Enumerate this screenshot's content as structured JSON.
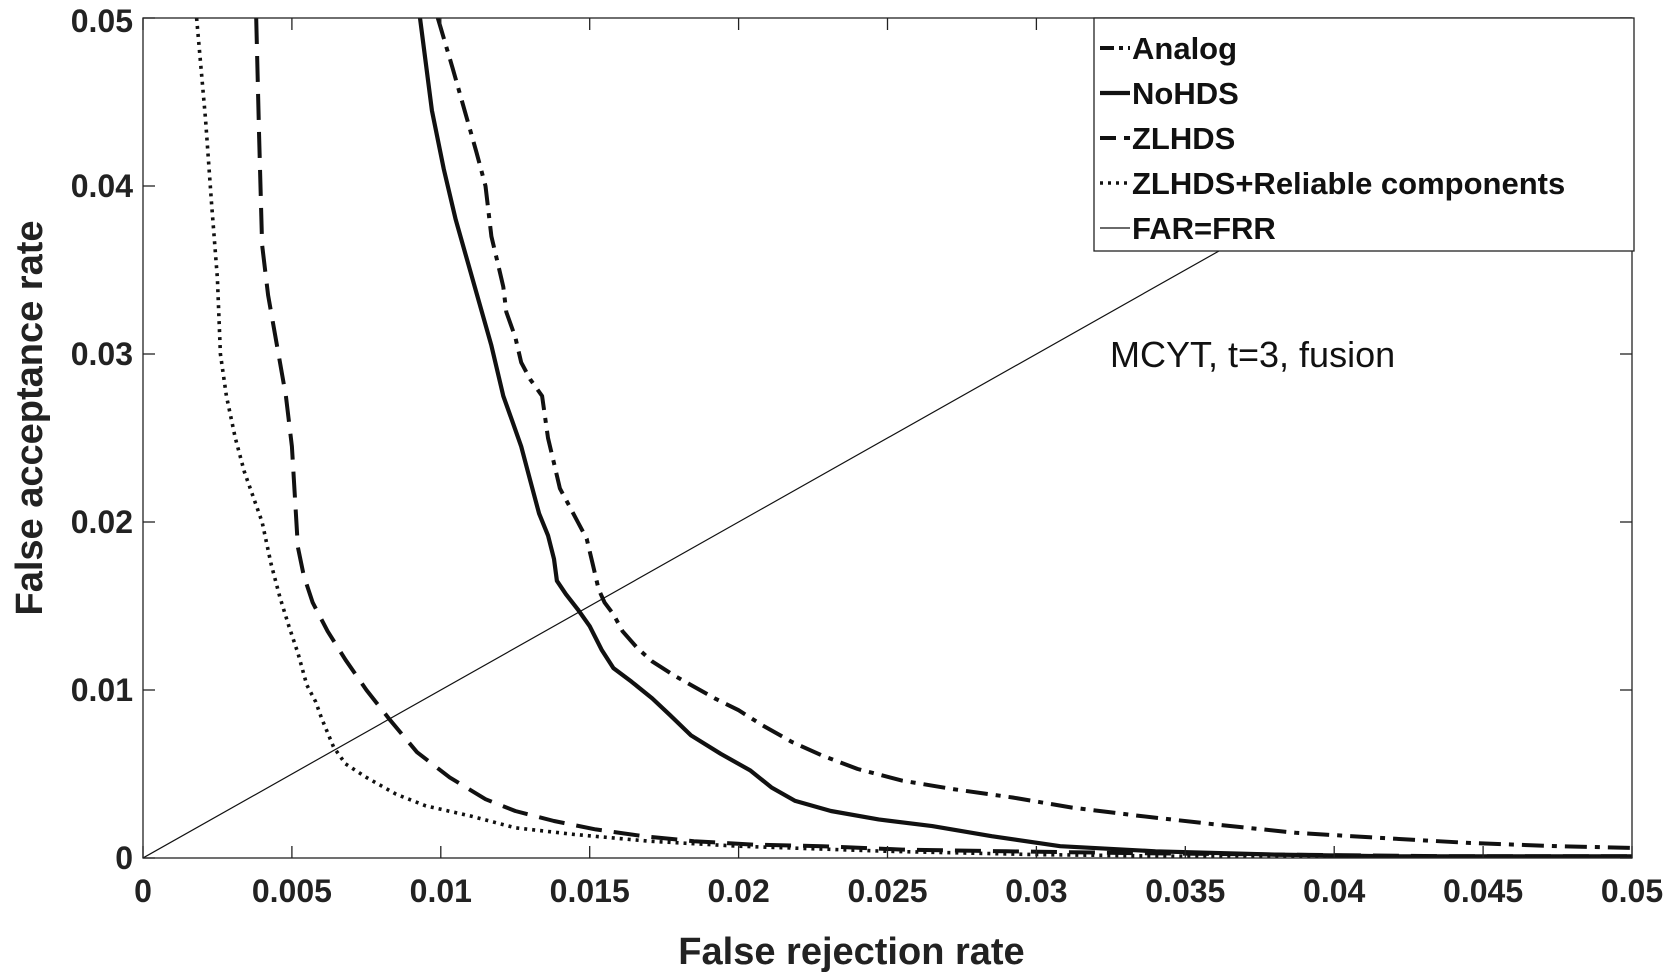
{
  "chart_data": {
    "type": "line",
    "title": "",
    "xlabel": "False rejection rate",
    "ylabel": "False acceptance rate",
    "xlim": [
      0,
      0.05
    ],
    "ylim": [
      0,
      0.05
    ],
    "xticks": [
      0,
      0.005,
      0.01,
      0.015,
      0.02,
      0.025,
      0.03,
      0.035,
      0.04,
      0.045,
      0.05
    ],
    "xtick_labels": [
      "0",
      "0.005",
      "0.01",
      "0.015",
      "0.02",
      "0.025",
      "0.03",
      "0.035",
      "0.04",
      "0.045",
      "0.05"
    ],
    "yticks": [
      0,
      0.01,
      0.02,
      0.03,
      0.04,
      0.05
    ],
    "ytick_labels": [
      "0",
      "0.01",
      "0.02",
      "0.03",
      "0.04",
      "0.05"
    ],
    "grid": false,
    "legend_position": "top-right",
    "annotation": "MCYT, t=3, fusion",
    "series": [
      {
        "name": "Analog",
        "style": "dashdot",
        "x": [
          0.0099,
          0.0104,
          0.0108,
          0.0112,
          0.0115,
          0.0117,
          0.0119,
          0.0121,
          0.0122,
          0.0125,
          0.0127,
          0.013,
          0.0132,
          0.0134,
          0.0136,
          0.0138,
          0.014,
          0.0143,
          0.0146,
          0.0149,
          0.0151,
          0.0153,
          0.0155,
          0.0158,
          0.0161,
          0.0166,
          0.0171,
          0.0178,
          0.0185,
          0.0192,
          0.02,
          0.0208,
          0.0218,
          0.0228,
          0.024,
          0.0255,
          0.0272,
          0.0292,
          0.0312,
          0.0335,
          0.036,
          0.0387,
          0.0415,
          0.0445,
          0.0475,
          0.05
        ],
        "y": [
          0.05,
          0.047,
          0.0445,
          0.042,
          0.04,
          0.037,
          0.0355,
          0.034,
          0.0325,
          0.031,
          0.0295,
          0.0285,
          0.028,
          0.0275,
          0.025,
          0.0235,
          0.022,
          0.021,
          0.02,
          0.019,
          0.0175,
          0.016,
          0.0152,
          0.0145,
          0.0135,
          0.0125,
          0.0117,
          0.0109,
          0.0102,
          0.0095,
          0.0088,
          0.0079,
          0.0069,
          0.0061,
          0.0053,
          0.0046,
          0.0041,
          0.0036,
          0.003,
          0.0025,
          0.002,
          0.0015,
          0.0012,
          0.0009,
          0.0007,
          0.0006
        ]
      },
      {
        "name": "NoHDS",
        "style": "solid",
        "x": [
          0.0093,
          0.0097,
          0.0101,
          0.0105,
          0.0109,
          0.0113,
          0.0117,
          0.0121,
          0.0124,
          0.0127,
          0.013,
          0.0133,
          0.0136,
          0.0138,
          0.0139,
          0.0142,
          0.0146,
          0.015,
          0.0154,
          0.0158,
          0.0164,
          0.0171,
          0.0177,
          0.0184,
          0.0194,
          0.0204,
          0.0211,
          0.0219,
          0.0231,
          0.0247,
          0.0265,
          0.0285,
          0.0308,
          0.034,
          0.038,
          0.042,
          0.046,
          0.05
        ],
        "y": [
          0.05,
          0.0445,
          0.041,
          0.038,
          0.0355,
          0.033,
          0.0305,
          0.0275,
          0.026,
          0.0245,
          0.0225,
          0.0205,
          0.0192,
          0.0178,
          0.0165,
          0.0157,
          0.0148,
          0.0138,
          0.0124,
          0.0113,
          0.0105,
          0.0095,
          0.0085,
          0.0073,
          0.0062,
          0.0052,
          0.0042,
          0.0034,
          0.0028,
          0.0023,
          0.0019,
          0.0013,
          0.0007,
          0.0004,
          0.0002,
          0.0001,
          0.0001,
          0.0001
        ]
      },
      {
        "name": "ZLHDS",
        "style": "dashed",
        "x": [
          0.0038,
          0.0039,
          0.004,
          0.0042,
          0.0045,
          0.0048,
          0.005,
          0.0051,
          0.0052,
          0.0054,
          0.0057,
          0.0062,
          0.0068,
          0.0075,
          0.0083,
          0.0092,
          0.0103,
          0.0115,
          0.0125,
          0.0138,
          0.0152,
          0.0168,
          0.0185,
          0.0205,
          0.0228,
          0.0255,
          0.029,
          0.033,
          0.038,
          0.044,
          0.05
        ],
        "y": [
          0.05,
          0.043,
          0.0365,
          0.0335,
          0.0305,
          0.0275,
          0.0245,
          0.0215,
          0.0185,
          0.0168,
          0.0152,
          0.0135,
          0.0118,
          0.01,
          0.0082,
          0.0063,
          0.0048,
          0.0035,
          0.0028,
          0.0022,
          0.0017,
          0.0013,
          0.001,
          0.0008,
          0.0007,
          0.0005,
          0.0004,
          0.0003,
          0.0002,
          0.0001,
          0.0001
        ]
      },
      {
        "name": "ZLHDS+Reliable components",
        "style": "dotted",
        "x": [
          0.0018,
          0.0021,
          0.0023,
          0.0025,
          0.0026,
          0.0028,
          0.0031,
          0.0034,
          0.0037,
          0.004,
          0.0043,
          0.0046,
          0.0049,
          0.0052,
          0.0055,
          0.0058,
          0.006,
          0.0064,
          0.0068,
          0.0075,
          0.0085,
          0.0095,
          0.011,
          0.0125,
          0.0145,
          0.017,
          0.02,
          0.025,
          0.03,
          0.035,
          0.04,
          0.045,
          0.05
        ],
        "y": [
          0.05,
          0.044,
          0.039,
          0.0345,
          0.03,
          0.0275,
          0.025,
          0.023,
          0.0215,
          0.02,
          0.0175,
          0.0155,
          0.0138,
          0.0122,
          0.0103,
          0.0093,
          0.0083,
          0.0066,
          0.0056,
          0.0048,
          0.0038,
          0.0031,
          0.0025,
          0.0018,
          0.0014,
          0.001,
          0.0007,
          0.0004,
          0.0002,
          0.0001,
          0.0001,
          0.0001,
          0.0001
        ]
      },
      {
        "name": "FAR=FRR",
        "style": "thin",
        "x": [
          0,
          0.05
        ],
        "y": [
          0,
          0.05
        ]
      }
    ]
  }
}
